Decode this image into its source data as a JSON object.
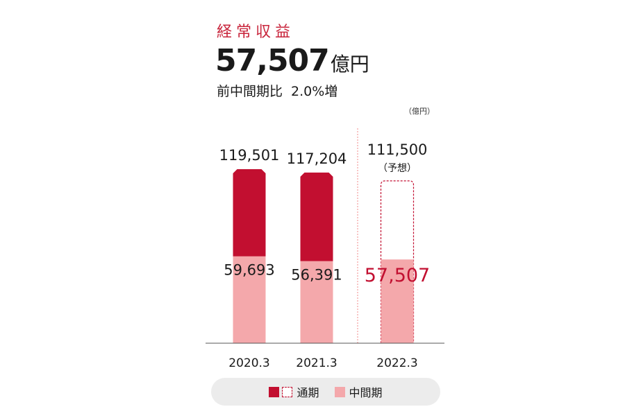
{
  "header": {
    "title": "経常収益",
    "value": "57,507",
    "value_unit": "億円",
    "comparison_label": "前中間期比",
    "comparison_value": "2.0%増",
    "unit_note": "（億円）"
  },
  "colors": {
    "title": "#c8243b",
    "full_year": "#c20f30",
    "interim": "#f4a8ab",
    "highlight_text": "#c20f30"
  },
  "legend": {
    "full_year_label": "通期",
    "interim_label": "中間期"
  },
  "chart_data": {
    "type": "bar",
    "stacked": false,
    "categories": [
      "2020.3",
      "2021.3",
      "2022.3"
    ],
    "series": [
      {
        "name": "通期",
        "values": [
          119501,
          117204,
          111500
        ]
      },
      {
        "name": "中間期",
        "values": [
          59693,
          56391,
          57507
        ]
      }
    ],
    "labels": {
      "full_year": [
        "119,501",
        "117,204",
        "111,500"
      ],
      "interim": [
        "59,693",
        "56,391",
        "57,507"
      ],
      "forecast_note": "（予想）"
    },
    "forecast_category_index": 2,
    "ylim": [
      0,
      125000
    ]
  }
}
